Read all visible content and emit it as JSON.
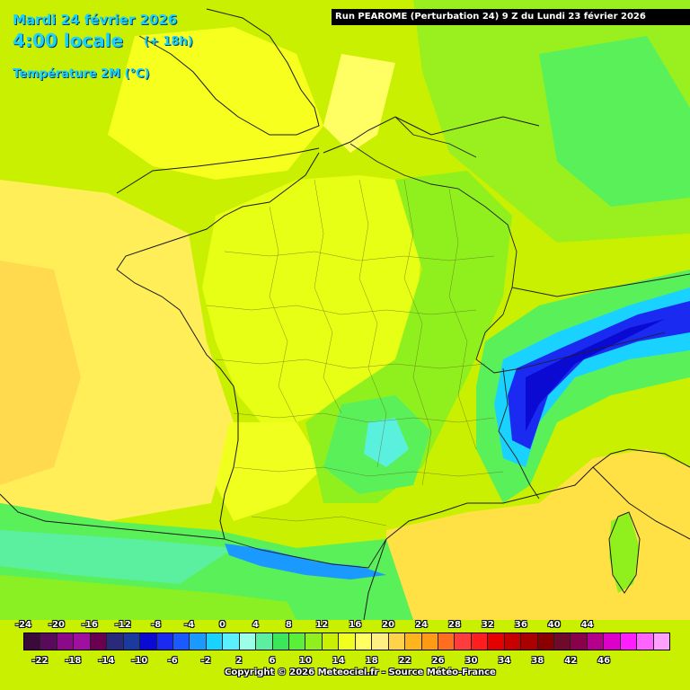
{
  "header": {
    "date": "Mardi 24 février 2026",
    "hour": "4:00 locale",
    "lead": "(+ 18h)",
    "parameter": "Température 2M (°C)"
  },
  "run_info": "Run PEAROME (Perturbation 24) 9 Z du Lundi 23 février 2026",
  "legend": {
    "top_labels": [
      "-24",
      "-20",
      "-16",
      "-12",
      "-8",
      "-4",
      "0",
      "4",
      "8",
      "12",
      "16",
      "20",
      "24",
      "28",
      "32",
      "36",
      "40",
      "44"
    ],
    "bottom_labels": [
      "-22",
      "-18",
      "-14",
      "-10",
      "-6",
      "-2",
      "2",
      "6",
      "10",
      "14",
      "18",
      "22",
      "26",
      "30",
      "34",
      "38",
      "42",
      "46"
    ],
    "colors": [
      "#3a0a3a",
      "#5a0a5a",
      "#8a0a8a",
      "#a010a0",
      "#6a0050",
      "#2a2a7a",
      "#1a3aa0",
      "#0a0ad2",
      "#1a2af0",
      "#1a5aff",
      "#1a9aff",
      "#19d2ff",
      "#5af0ff",
      "#9affe6",
      "#5af0a0",
      "#3ae65a",
      "#5af03a",
      "#8ff01e",
      "#c8f000",
      "#f0ff1e",
      "#ffff64",
      "#ffee82",
      "#ffd24a",
      "#ffb41e",
      "#ff9a14",
      "#ff6e1e",
      "#ff3c3c",
      "#ff1e1e",
      "#e60000",
      "#c80000",
      "#aa0000",
      "#8a0000",
      "#700a2a",
      "#8a004a",
      "#b4008a",
      "#dc00c8",
      "#ff1eff",
      "#ff64ff",
      "#ffa0ff"
    ]
  },
  "copyright": "Copyright © 2026 Meteociel.fr - Source Météo-France",
  "map": {
    "field_colors": {
      "ocean_west": "#ffee58",
      "atlantic_coast": "#f6ff1e",
      "france_center": "#e6ff14",
      "east_france": "#8ff01e",
      "north_sea": "#9af01e",
      "alps_cold": "#5af05a",
      "alps_frost": "#19d2ff",
      "alps_peaks": "#1a2af0",
      "mediterranean": "#ffe146",
      "spain": "#5af05a",
      "pyrenees": "#1a9aff"
    }
  }
}
